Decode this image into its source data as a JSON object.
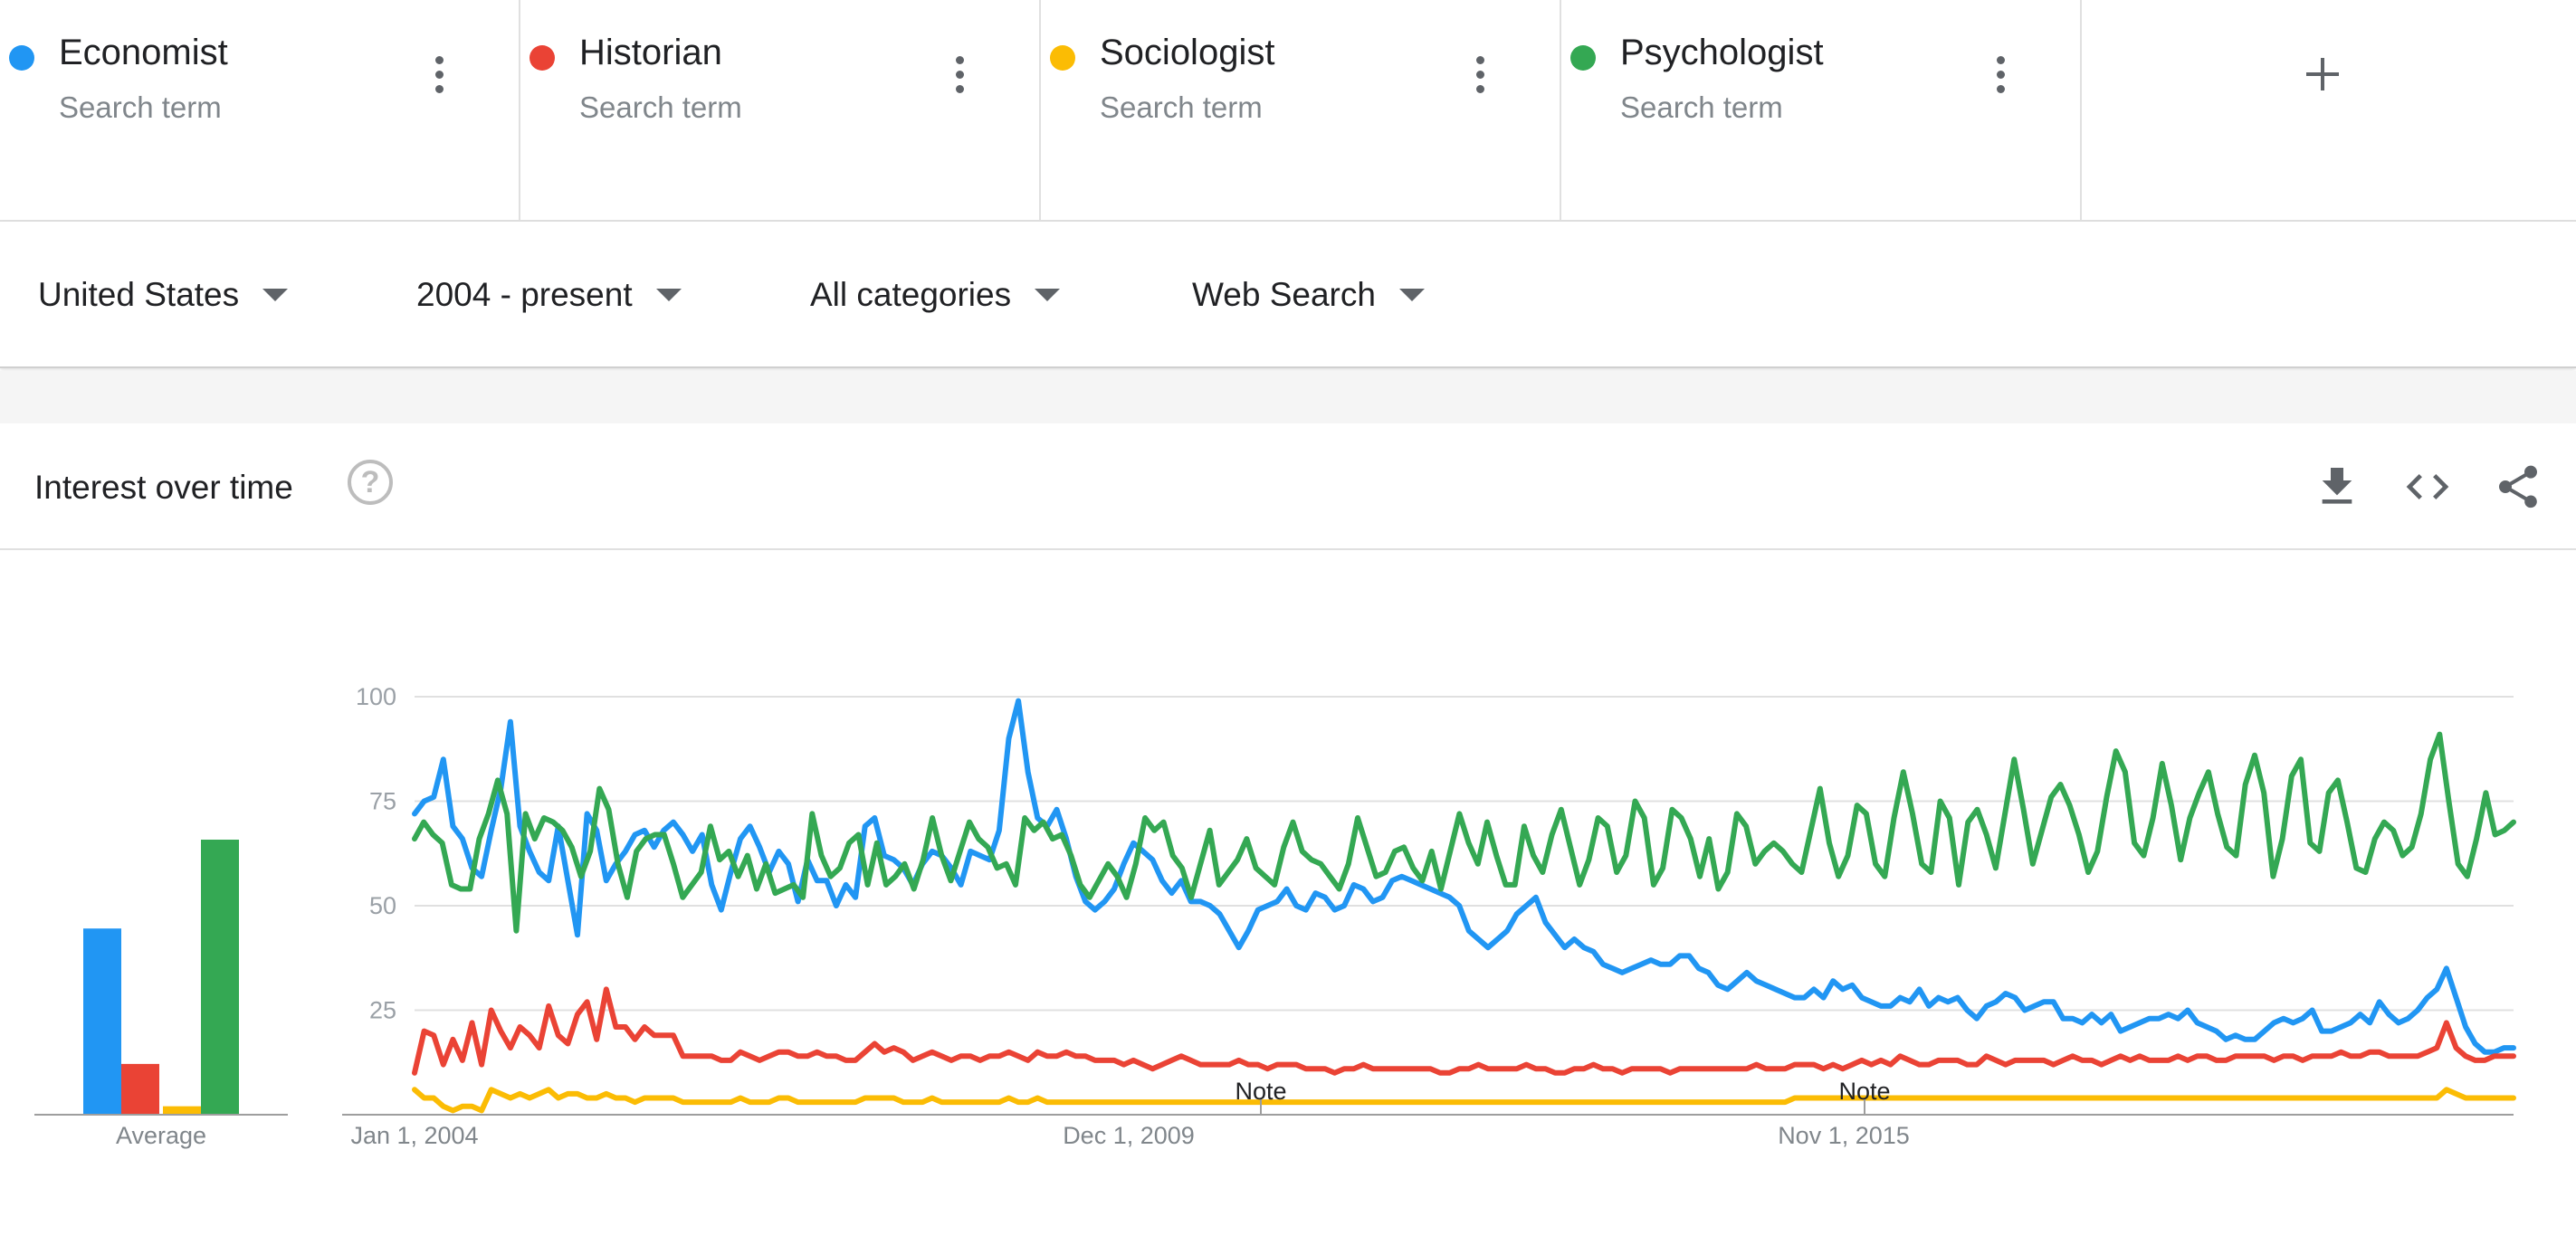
{
  "terms": [
    {
      "name": "Economist",
      "sub": "Search term",
      "color": "#2196f3"
    },
    {
      "name": "Historian",
      "sub": "Search term",
      "color": "#ea4335"
    },
    {
      "name": "Sociologist",
      "sub": "Search term",
      "color": "#fbbc04"
    },
    {
      "name": "Psychologist",
      "sub": "Search term",
      "color": "#34a853"
    }
  ],
  "add_icon": "plus-icon",
  "filters": {
    "region": "United States",
    "time": "2004 - present",
    "category": "All categories",
    "property": "Web Search"
  },
  "card": {
    "title": "Interest over time",
    "help_icon": "help-icon",
    "download_icon": "download-icon",
    "embed_icon": "embed-code-icon",
    "share_icon": "share-icon"
  },
  "chart_data": {
    "type": "line",
    "ylim": [
      0,
      100
    ],
    "yticks": [
      "100",
      "75",
      "50",
      "25"
    ],
    "xtick_labels": [
      "Jan 1, 2004",
      "Dec 1, 2009",
      "Nov 1, 2015"
    ],
    "notes": [
      "Note",
      "Note"
    ],
    "average_label": "Average",
    "averages": [
      44,
      12,
      2,
      65
    ],
    "series": [
      {
        "name": "Economist",
        "color": "#2196f3",
        "values": [
          72,
          75,
          76,
          85,
          69,
          66,
          59,
          57,
          68,
          78,
          94,
          69,
          63,
          58,
          56,
          69,
          56,
          43,
          72,
          68,
          56,
          60,
          63,
          67,
          68,
          64,
          68,
          70,
          67,
          63,
          67,
          55,
          49,
          58,
          66,
          69,
          64,
          58,
          63,
          60,
          51,
          61,
          56,
          56,
          50,
          55,
          52,
          69,
          71,
          62,
          61,
          59,
          55,
          60,
          63,
          62,
          59,
          55,
          63,
          62,
          61,
          68,
          90,
          99,
          82,
          71,
          69,
          73,
          66,
          57,
          51,
          49,
          51,
          54,
          60,
          65,
          63,
          61,
          56,
          53,
          56,
          51,
          51,
          50,
          48,
          44,
          40,
          44,
          49,
          50,
          51,
          54,
          50,
          49,
          53,
          52,
          49,
          50,
          55,
          54,
          51,
          52,
          56,
          57,
          56,
          55,
          54,
          53,
          52,
          50,
          44,
          42,
          40,
          42,
          44,
          48,
          50,
          52,
          46,
          43,
          40,
          42,
          40,
          39,
          36,
          35,
          34,
          35,
          36,
          37,
          36,
          36,
          38,
          38,
          35,
          34,
          31,
          30,
          32,
          34,
          32,
          31,
          30,
          29,
          28,
          28,
          30,
          28,
          32,
          30,
          31,
          28,
          27,
          26,
          26,
          28,
          27,
          30,
          26,
          28,
          27,
          28,
          25,
          23,
          26,
          27,
          29,
          28,
          25,
          26,
          27,
          27,
          23,
          23,
          22,
          24,
          22,
          24,
          20,
          21,
          22,
          23,
          23,
          24,
          23,
          25,
          22,
          21,
          20,
          18,
          19,
          18,
          18,
          20,
          22,
          23,
          22,
          23,
          25,
          20,
          20,
          21,
          22,
          24,
          22,
          27,
          24,
          22,
          23,
          25,
          28,
          30,
          35,
          28,
          21,
          17,
          15,
          15,
          16,
          16
        ]
      },
      {
        "name": "Historian",
        "color": "#ea4335",
        "values": [
          10,
          20,
          19,
          12,
          18,
          13,
          22,
          12,
          25,
          20,
          16,
          21,
          19,
          16,
          26,
          19,
          17,
          24,
          27,
          18,
          30,
          21,
          21,
          18,
          21,
          19,
          19,
          19,
          14,
          14,
          14,
          14,
          13,
          13,
          15,
          14,
          13,
          14,
          15,
          15,
          14,
          14,
          15,
          14,
          14,
          13,
          13,
          15,
          17,
          15,
          16,
          15,
          13,
          14,
          15,
          14,
          13,
          14,
          14,
          13,
          14,
          14,
          15,
          14,
          13,
          15,
          14,
          14,
          15,
          14,
          14,
          13,
          13,
          13,
          12,
          13,
          12,
          11,
          12,
          13,
          14,
          13,
          12,
          12,
          12,
          12,
          13,
          12,
          12,
          11,
          12,
          12,
          12,
          11,
          11,
          11,
          10,
          11,
          11,
          12,
          11,
          11,
          11,
          11,
          11,
          11,
          11,
          10,
          10,
          11,
          11,
          12,
          11,
          11,
          11,
          11,
          12,
          11,
          11,
          10,
          10,
          11,
          11,
          12,
          11,
          11,
          10,
          11,
          11,
          11,
          11,
          10,
          11,
          11,
          11,
          11,
          11,
          11,
          11,
          11,
          12,
          11,
          11,
          11,
          12,
          12,
          12,
          11,
          12,
          11,
          12,
          13,
          12,
          13,
          12,
          14,
          13,
          12,
          12,
          13,
          13,
          13,
          12,
          12,
          14,
          13,
          12,
          13,
          13,
          13,
          13,
          12,
          13,
          14,
          13,
          13,
          12,
          13,
          14,
          13,
          14,
          13,
          13,
          13,
          14,
          13,
          14,
          14,
          13,
          13,
          14,
          14,
          14,
          14,
          13,
          14,
          14,
          13,
          14,
          14,
          14,
          15,
          14,
          14,
          15,
          15,
          14,
          14,
          14,
          14,
          15,
          16,
          22,
          16,
          14,
          13,
          13,
          14,
          14,
          14
        ]
      },
      {
        "name": "Sociologist",
        "color": "#fbbc04",
        "values": [
          6,
          4,
          4,
          2,
          1,
          2,
          2,
          1,
          6,
          5,
          4,
          5,
          4,
          5,
          6,
          4,
          5,
          5,
          4,
          4,
          5,
          4,
          4,
          3,
          4,
          4,
          4,
          4,
          3,
          3,
          3,
          3,
          3,
          3,
          4,
          3,
          3,
          3,
          4,
          4,
          3,
          3,
          3,
          3,
          3,
          3,
          3,
          4,
          4,
          4,
          4,
          3,
          3,
          3,
          4,
          3,
          3,
          3,
          3,
          3,
          3,
          3,
          4,
          3,
          3,
          4,
          3,
          3,
          3,
          3,
          3,
          3,
          3,
          3,
          3,
          3,
          3,
          3,
          3,
          3,
          3,
          3,
          3,
          3,
          3,
          3,
          3,
          3,
          3,
          3,
          3,
          3,
          3,
          3,
          3,
          3,
          3,
          3,
          3,
          3,
          3,
          3,
          3,
          3,
          3,
          3,
          3,
          3,
          3,
          3,
          3,
          3,
          3,
          3,
          3,
          3,
          3,
          3,
          3,
          3,
          3,
          3,
          3,
          3,
          3,
          3,
          3,
          3,
          3,
          3,
          3,
          3,
          3,
          3,
          3,
          3,
          3,
          3,
          3,
          3,
          3,
          3,
          3,
          3,
          4,
          4,
          4,
          4,
          4,
          4,
          4,
          4,
          4,
          4,
          4,
          4,
          4,
          4,
          4,
          4,
          4,
          4,
          4,
          4,
          4,
          4,
          4,
          4,
          4,
          4,
          4,
          4,
          4,
          4,
          4,
          4,
          4,
          4,
          4,
          4,
          4,
          4,
          4,
          4,
          4,
          4,
          4,
          4,
          4,
          4,
          4,
          4,
          4,
          4,
          4,
          4,
          4,
          4,
          4,
          4,
          4,
          4,
          4,
          4,
          4,
          4,
          4,
          4,
          4,
          4,
          4,
          4,
          6,
          5,
          4,
          4,
          4,
          4,
          4,
          4
        ]
      },
      {
        "name": "Psychologist",
        "color": "#34a853",
        "values": [
          66,
          70,
          67,
          65,
          55,
          54,
          54,
          66,
          72,
          80,
          72,
          44,
          72,
          66,
          71,
          70,
          68,
          64,
          57,
          63,
          78,
          73,
          60,
          52,
          63,
          66,
          67,
          67,
          60,
          52,
          55,
          58,
          69,
          61,
          63,
          57,
          62,
          54,
          60,
          53,
          54,
          55,
          52,
          72,
          62,
          57,
          59,
          65,
          67,
          55,
          65,
          55,
          57,
          60,
          54,
          61,
          71,
          62,
          56,
          63,
          70,
          66,
          64,
          59,
          60,
          55,
          71,
          68,
          70,
          66,
          67,
          62,
          55,
          52,
          56,
          60,
          57,
          52,
          60,
          71,
          68,
          70,
          62,
          59,
          52,
          60,
          68,
          55,
          58,
          61,
          66,
          59,
          57,
          55,
          64,
          70,
          63,
          61,
          60,
          57,
          54,
          60,
          71,
          64,
          57,
          58,
          63,
          64,
          59,
          56,
          63,
          54,
          63,
          72,
          65,
          60,
          70,
          62,
          55,
          55,
          69,
          62,
          58,
          67,
          73,
          64,
          55,
          61,
          71,
          69,
          58,
          62,
          75,
          71,
          55,
          59,
          73,
          71,
          66,
          57,
          66,
          54,
          58,
          72,
          69,
          60,
          63,
          65,
          63,
          60,
          58,
          68,
          78,
          65,
          57,
          62,
          74,
          72,
          60,
          57,
          71,
          82,
          72,
          60,
          58,
          75,
          71,
          55,
          70,
          73,
          67,
          59,
          72,
          85,
          73,
          60,
          68,
          76,
          79,
          74,
          67,
          58,
          63,
          76,
          87,
          82,
          65,
          62,
          71,
          84,
          74,
          61,
          71,
          77,
          82,
          72,
          64,
          62,
          79,
          86,
          77,
          57,
          66,
          81,
          85,
          65,
          63,
          77,
          80,
          70,
          59,
          58,
          66,
          70,
          68,
          62,
          64,
          72,
          85,
          91,
          75,
          60,
          57,
          66,
          77,
          67,
          68,
          70
        ]
      }
    ]
  }
}
